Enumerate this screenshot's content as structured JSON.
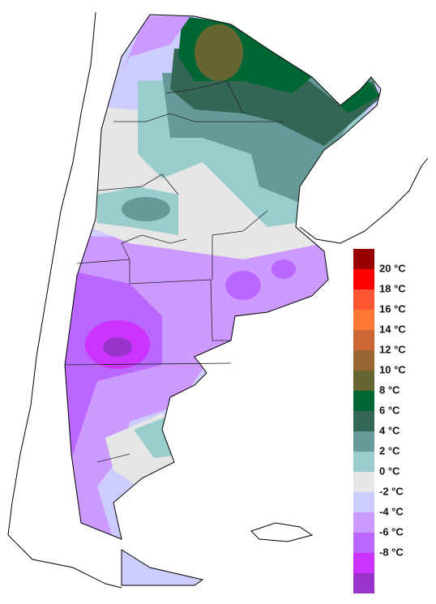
{
  "legend": {
    "colors": [
      "#990000",
      "#ff0000",
      "#ff5533",
      "#ff7733",
      "#cc6633",
      "#996633",
      "#666633",
      "#006633",
      "#336655",
      "#669999",
      "#99cccc",
      "#e6e6e6",
      "#ccccff",
      "#cc99ff",
      "#bb66ff",
      "#cc33ff",
      "#9933cc"
    ],
    "labels": [
      "20 °C",
      "18 °C",
      "16 °C",
      "14 °C",
      "12 °C",
      "10 °C",
      "8 °C",
      "6 °C",
      "4 °C",
      "2 °C",
      "0 °C",
      "-2 °C",
      "-4 °C",
      "-6 °C",
      "-8 °C"
    ]
  }
}
